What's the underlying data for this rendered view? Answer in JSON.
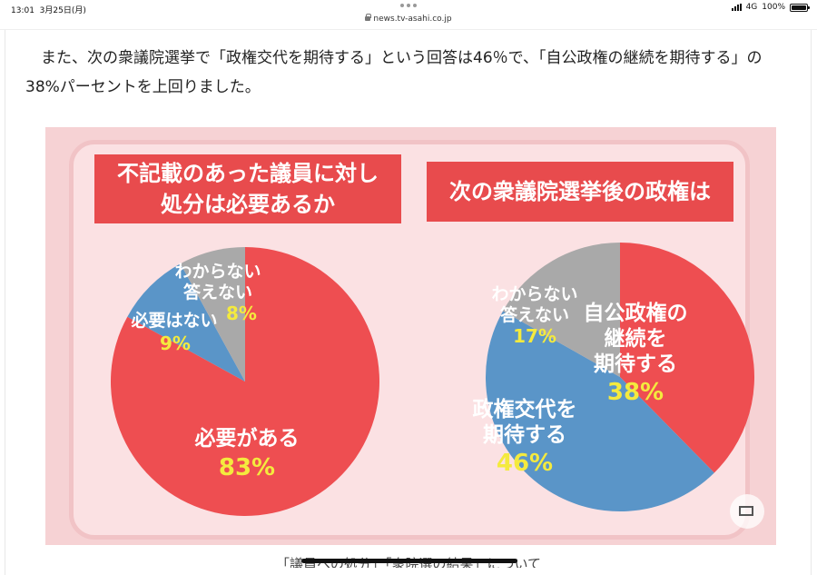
{
  "status_bar": {
    "time": "13:01",
    "date": "3月25日(月)",
    "network": "4G",
    "battery": "100%"
  },
  "browser": {
    "url": "news.tv-asahi.co.jp"
  },
  "article": {
    "paragraph": "また、次の衆議院選挙で「政権交代を期待する」という回答は46％で、「自公政権の継続を期待する」の38%パーセントを上回りました。"
  },
  "figure": {
    "left_title_line1": "不記載のあった議員に対し",
    "left_title_line2": "処分は必要あるか",
    "right_title": "次の衆議院選挙後の政権は"
  },
  "chart_data": [
    {
      "type": "pie",
      "title": "不記載のあった議員に対し処分は必要あるか",
      "labels": [
        "必要がある",
        "必要はない",
        "わからない 答えない"
      ],
      "values": [
        83,
        9,
        8
      ],
      "colors": [
        "#ee4e51",
        "#5a95c8",
        "#a9a9a9"
      ],
      "value_labels": [
        "83%",
        "9%",
        "8%"
      ]
    },
    {
      "type": "pie",
      "title": "次の衆議院選挙後の政権は",
      "labels": [
        "自公政権の継続を期待する",
        "政権交代を期待する",
        "わからない 答えない"
      ],
      "values": [
        38,
        46,
        17
      ],
      "colors": [
        "#ee4e51",
        "#5a95c8",
        "#a9a9a9"
      ],
      "value_labels": [
        "38%",
        "46%",
        "17%"
      ]
    }
  ],
  "pie_labels": {
    "left": {
      "yes_line1": "必要がある",
      "yes_pct": "83%",
      "no_line1": "必要はない",
      "no_pct": "9%",
      "dk_line1": "わからない",
      "dk_line2": "答えない",
      "dk_pct": "8%"
    },
    "right": {
      "cont_line1": "自公政権の",
      "cont_line2": "継続を",
      "cont_line3": "期待する",
      "cont_pct": "38%",
      "change_line1": "政権交代を",
      "change_line2": "期待する",
      "change_pct": "46%",
      "dk_line1": "わからない",
      "dk_line2": "答えない",
      "dk_pct": "17%"
    }
  },
  "caption": "「議員への処分」「衆院選の結果」について"
}
